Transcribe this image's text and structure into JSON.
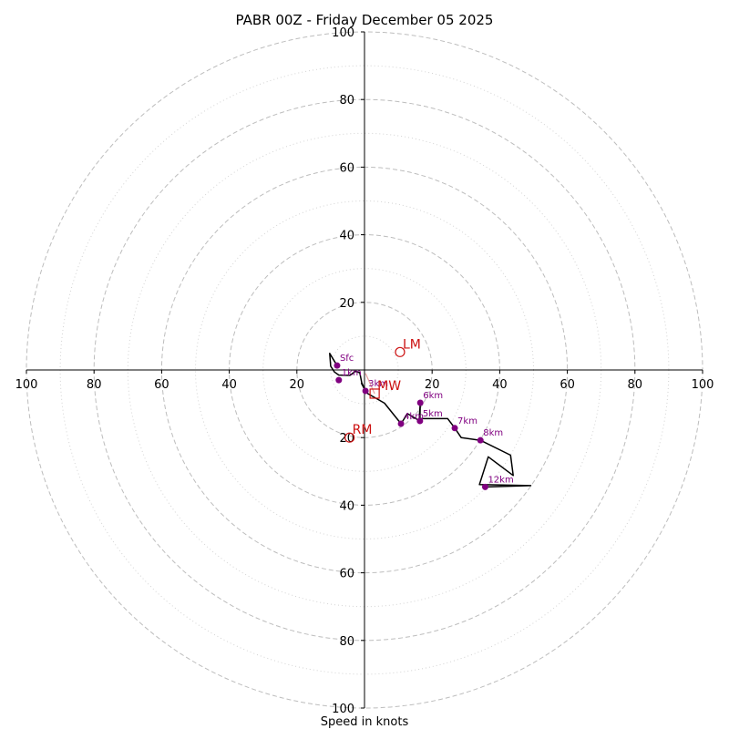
{
  "chart_data": {
    "type": "hodograph",
    "title": "PABR 00Z - Friday December 05 2025",
    "xlabel": "Speed in knots",
    "unit": "knots",
    "xlim": [
      -100,
      100
    ],
    "ylim": [
      -100,
      100
    ],
    "major_rings": [
      20,
      40,
      60,
      80,
      100
    ],
    "minor_rings": [
      10,
      30,
      50,
      70,
      90
    ],
    "x_ticks": [
      {
        "value": -100,
        "label": "100"
      },
      {
        "value": -80,
        "label": "80"
      },
      {
        "value": -60,
        "label": "60"
      },
      {
        "value": -40,
        "label": "40"
      },
      {
        "value": -20,
        "label": "20"
      },
      {
        "value": 20,
        "label": "20"
      },
      {
        "value": 40,
        "label": "40"
      },
      {
        "value": 60,
        "label": "60"
      },
      {
        "value": 80,
        "label": "80"
      },
      {
        "value": 100,
        "label": "100"
      }
    ],
    "y_ticks": [
      {
        "value": 100,
        "label": "100"
      },
      {
        "value": 80,
        "label": "80"
      },
      {
        "value": 60,
        "label": "60"
      },
      {
        "value": 40,
        "label": "40"
      },
      {
        "value": 20,
        "label": "20"
      },
      {
        "value": -20,
        "label": "20"
      },
      {
        "value": -40,
        "label": "40"
      },
      {
        "value": -60,
        "label": "60"
      },
      {
        "value": -80,
        "label": "80"
      },
      {
        "value": -100,
        "label": "100"
      }
    ],
    "hodograph_trace": [
      [
        -8.1,
        1.3
      ],
      [
        -10.3,
        4.9
      ],
      [
        -10.0,
        1.1
      ],
      [
        -8.9,
        -0.6
      ],
      [
        -7.6,
        -1.5
      ],
      [
        -4.3,
        -1.6
      ],
      [
        -2.7,
        -0.4
      ],
      [
        -1.4,
        -0.8
      ],
      [
        -0.8,
        -3.8
      ],
      [
        0.3,
        -6.2
      ],
      [
        -0.9,
        -4.0
      ],
      [
        1.0,
        -7.0
      ],
      [
        5.9,
        -9.8
      ],
      [
        10.8,
        -15.9
      ],
      [
        12.7,
        -12.9
      ],
      [
        14.4,
        -13.9
      ],
      [
        16.4,
        -15.1
      ],
      [
        16.5,
        -9.7
      ],
      [
        16.2,
        -14.4
      ],
      [
        24.6,
        -14.4
      ],
      [
        26.7,
        -17.2
      ],
      [
        28.6,
        -20.0
      ],
      [
        34.3,
        -20.8
      ],
      [
        43.2,
        -25.2
      ],
      [
        44.0,
        -31.2
      ],
      [
        36.6,
        -25.7
      ],
      [
        34.0,
        -33.9
      ],
      [
        49.2,
        -34.2
      ],
      [
        35.7,
        -34.6
      ]
    ],
    "height_markers": [
      {
        "label": "Sfc",
        "u": -8.1,
        "v": 1.3
      },
      {
        "label": "1km",
        "u": -7.6,
        "v": -3.0
      },
      {
        "label": "3km",
        "u": 0.3,
        "v": -6.2
      },
      {
        "label": "4km",
        "u": 10.8,
        "v": -15.9
      },
      {
        "label": "5km",
        "u": 16.4,
        "v": -15.1
      },
      {
        "label": "6km",
        "u": 16.5,
        "v": -9.7
      },
      {
        "label": "7km",
        "u": 26.7,
        "v": -17.2
      },
      {
        "label": "8km",
        "u": 34.3,
        "v": -20.8
      },
      {
        "label": "12km",
        "u": 35.7,
        "v": -34.6
      }
    ],
    "height_color": "#800080",
    "storm_motions": [
      {
        "label": "LM",
        "u": 10.5,
        "v": 5.3,
        "marker": "circle"
      },
      {
        "label": "RM",
        "u": -4.4,
        "v": -20.0,
        "marker": "circle"
      },
      {
        "label": "MW",
        "u": 3.0,
        "v": -7.0,
        "marker": "square"
      }
    ],
    "storm_motion_color": "#cc1111",
    "shear_vector": {
      "from": [
        0.3,
        -1.0
      ],
      "to": [
        3.0,
        -7.0
      ],
      "color": "#e8a0a0"
    }
  }
}
